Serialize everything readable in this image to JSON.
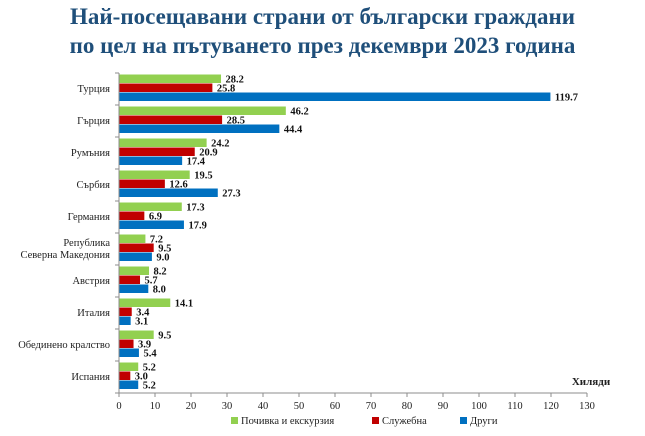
{
  "chart_data": {
    "type": "bar",
    "orientation": "horizontal",
    "title_line1": "Най-посещавани страни от български граждани",
    "title_line2": "по цел на пътуването през декември 2023 година",
    "xlabel": "Хиляди",
    "xlim": [
      0,
      130
    ],
    "xticks": [
      0,
      10,
      20,
      30,
      40,
      50,
      60,
      70,
      80,
      90,
      100,
      110,
      120,
      130
    ],
    "grid": false,
    "legend_position": "bottom",
    "categories": [
      [
        "Турция"
      ],
      [
        "Гърция"
      ],
      [
        "Румъния"
      ],
      [
        "Сърбия"
      ],
      [
        "Германия"
      ],
      [
        "Република",
        "Северна Македония"
      ],
      [
        "Австрия"
      ],
      [
        "Италия"
      ],
      [
        "Обединено кралство"
      ],
      [
        "Испания"
      ]
    ],
    "series": [
      {
        "name": "Почивка и екскурзия",
        "color": "#92d050",
        "values": [
          28.2,
          46.2,
          24.2,
          19.5,
          17.3,
          7.2,
          8.2,
          14.1,
          9.5,
          5.2
        ],
        "labels": [
          "28.2",
          "46.2",
          "24.2",
          "19.5",
          "17.3",
          "7.2",
          "8.2",
          "14.1",
          "9.5",
          "5.2"
        ]
      },
      {
        "name": "Служебна",
        "color": "#c00000",
        "values": [
          25.8,
          28.5,
          20.9,
          12.6,
          6.9,
          9.5,
          5.7,
          3.4,
          3.9,
          3.0
        ],
        "labels": [
          "25.8",
          "28.5",
          "20.9",
          "12.6",
          "6.9",
          "9.5",
          "5.7",
          "3.4",
          "3.9",
          "3.0"
        ]
      },
      {
        "name": "Други",
        "color": "#0070c0",
        "values": [
          119.7,
          44.4,
          17.4,
          27.3,
          17.9,
          9.0,
          8.0,
          3.1,
          5.4,
          5.2
        ],
        "labels": [
          "119.7",
          "44.4",
          "17.4",
          "27.3",
          "17.9",
          "9.0",
          "8.0",
          "3.1",
          "5.4",
          "5.2"
        ]
      }
    ]
  }
}
